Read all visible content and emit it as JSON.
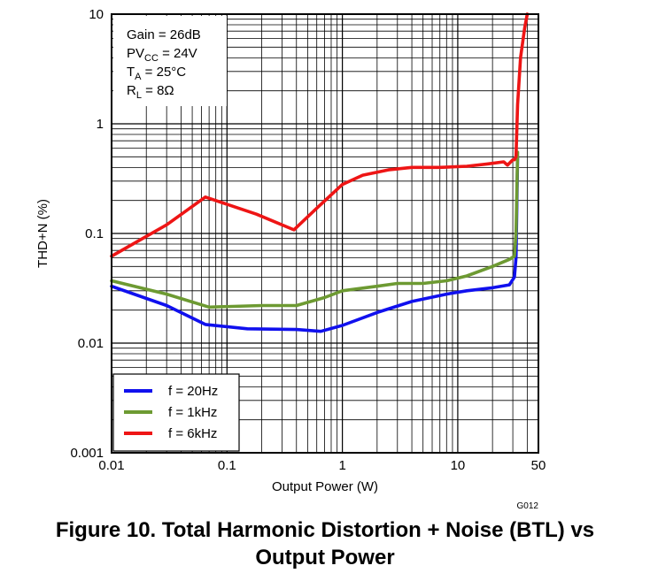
{
  "chart_data": {
    "type": "line",
    "x_scale": "log",
    "y_scale": "log",
    "xlabel": "Output Power (W)",
    "ylabel": "THD+N (%)",
    "xlim": [
      0.01,
      50
    ],
    "ylim": [
      0.001,
      10
    ],
    "x_ticks": [
      "0.01",
      "0.1",
      "1",
      "10",
      "50"
    ],
    "x_tick_values": [
      0.01,
      0.1,
      1,
      10,
      50
    ],
    "y_ticks": [
      "0.001",
      "0.01",
      "0.1",
      "1",
      "10"
    ],
    "y_tick_values": [
      0.001,
      0.01,
      0.1,
      1,
      10
    ],
    "grid": true,
    "legend_position": "bottom-left",
    "conditions": {
      "gain": "Gain = 26dB",
      "pvcc_main": "PV",
      "pvcc_sub": "CC",
      "pvcc_rest": " = 24V",
      "ta_main": "T",
      "ta_sub": "A",
      "ta_rest": " = 25°C",
      "rl_main": "R",
      "rl_sub": "L",
      "rl_rest": " = 8Ω"
    },
    "graph_code": "G012",
    "series": [
      {
        "name": "f = 20Hz",
        "color": "#1010ee",
        "x": [
          0.01,
          0.03,
          0.065,
          0.15,
          0.4,
          0.65,
          1.0,
          2.0,
          4.0,
          8.0,
          12,
          20,
          28,
          31,
          32,
          33
        ],
        "y": [
          0.033,
          0.022,
          0.0148,
          0.0135,
          0.0133,
          0.0128,
          0.0145,
          0.019,
          0.024,
          0.028,
          0.03,
          0.032,
          0.034,
          0.04,
          0.06,
          0.5
        ]
      },
      {
        "name": "f = 1kHz",
        "color": "#6d9a32",
        "x": [
          0.01,
          0.03,
          0.07,
          0.2,
          0.4,
          0.7,
          1.0,
          2.0,
          3.0,
          5.0,
          8.0,
          12,
          20,
          28,
          31,
          32,
          33
        ],
        "y": [
          0.037,
          0.028,
          0.0213,
          0.022,
          0.022,
          0.026,
          0.03,
          0.033,
          0.035,
          0.035,
          0.037,
          0.041,
          0.05,
          0.058,
          0.062,
          0.1,
          0.55
        ]
      },
      {
        "name": "f = 6kHz",
        "color": "#ee1515",
        "x": [
          0.01,
          0.03,
          0.065,
          0.18,
          0.38,
          0.6,
          1.0,
          1.5,
          2.5,
          4.0,
          7.0,
          12,
          18,
          25,
          27,
          30,
          31,
          32,
          33,
          35,
          38,
          40
        ],
        "y": [
          0.062,
          0.12,
          0.215,
          0.15,
          0.108,
          0.17,
          0.28,
          0.34,
          0.38,
          0.4,
          0.4,
          0.41,
          0.43,
          0.45,
          0.42,
          0.47,
          0.47,
          0.5,
          1.5,
          4.0,
          7.5,
          10
        ]
      }
    ]
  },
  "caption": {
    "line1": "Figure 10. Total Harmonic Distortion + Noise (BTL) vs",
    "line2": "Output Power"
  }
}
